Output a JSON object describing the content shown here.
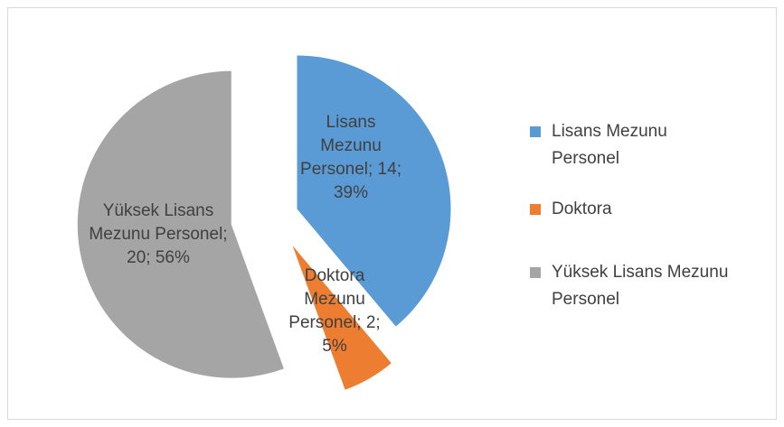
{
  "chart_data": {
    "type": "pie",
    "categories": [
      "Lisans Mezunu Personel",
      "Doktora",
      "Yüksek Lisans Mezunu Personel"
    ],
    "values": [
      14,
      2,
      20
    ],
    "value_labels": [
      "Lisans Mezunu Personel; 14; 39%",
      "Doktora Mezunu Personel; 2; 5%",
      "Yüksek Lisans Mezunu Personel; 20; 56%"
    ],
    "colors": [
      "#5b9bd5",
      "#ed7d31",
      "#a5a5a5"
    ],
    "legend": "right"
  }
}
